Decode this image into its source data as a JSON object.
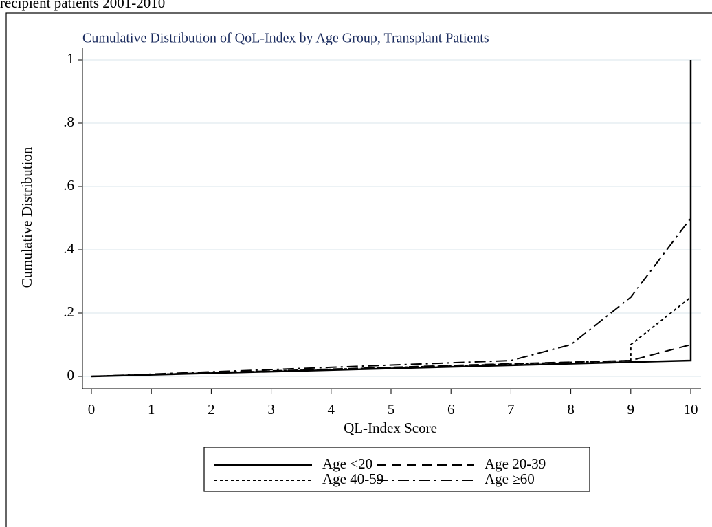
{
  "caption": "recipient patients 2001-2010",
  "chart_data": {
    "type": "line",
    "title": "Cumulative Distribution of QoL-Index by Age Group, Transplant Patients",
    "x_label": "QL-Index Score",
    "y_label": "Cumulative Distribution",
    "xlim": [
      0,
      10
    ],
    "ylim": [
      0,
      1
    ],
    "xticks": [
      0,
      1,
      2,
      3,
      4,
      5,
      6,
      7,
      8,
      9,
      10
    ],
    "yticks": [
      0,
      {
        "value": 0.2,
        "label": ".2"
      },
      {
        "value": 0.4,
        "label": ".4"
      },
      {
        "value": 0.6,
        "label": ".6"
      },
      {
        "value": 0.8,
        "label": ".8"
      },
      1
    ],
    "grid": true,
    "legend": "bottom",
    "series": [
      {
        "name": "Age <20",
        "color": "#000000",
        "dash": "solid",
        "x": [
          0,
          10,
          10
        ],
        "y": [
          0,
          0.05,
          1
        ]
      },
      {
        "name": "Age 20-39",
        "color": "#000000",
        "dash": "dashed",
        "x": [
          0,
          7,
          9,
          10,
          10
        ],
        "y": [
          0,
          0.04,
          0.05,
          0.1,
          1
        ]
      },
      {
        "name": "Age 40-59",
        "color": "#000000",
        "dash": "dotted",
        "x": [
          0,
          9,
          9,
          10,
          10
        ],
        "y": [
          0,
          0.05,
          0.1,
          0.25,
          1
        ]
      },
      {
        "name": "Age ≥60",
        "color": "#000000",
        "dash": "dashdot",
        "x": [
          0,
          7,
          8,
          9,
          10,
          10
        ],
        "y": [
          0,
          0.05,
          0.1,
          0.25,
          0.5,
          1
        ]
      }
    ]
  }
}
